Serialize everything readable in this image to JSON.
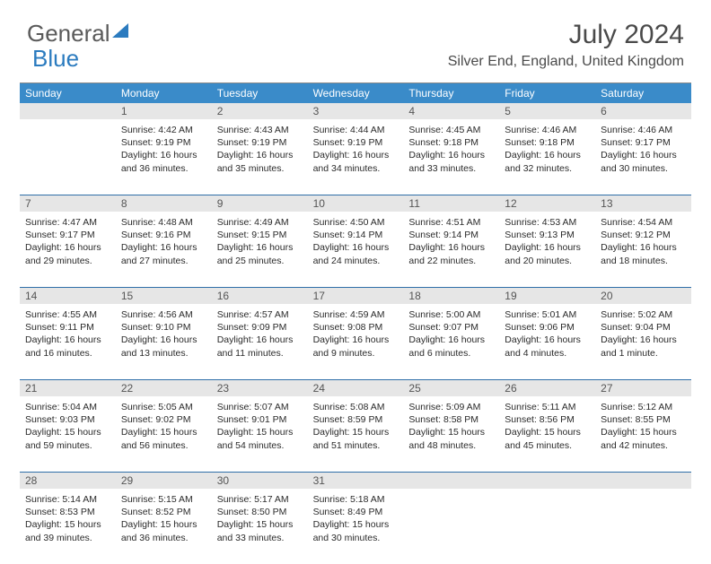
{
  "brand": {
    "part1": "General",
    "part2": "Blue"
  },
  "title": "July 2024",
  "location": "Silver End, England, United Kingdom",
  "colors": {
    "header_bg": "#3a8bc9",
    "week_border": "#2f6fa8",
    "daynum_bg": "#e6e6e6",
    "brand_gray": "#5a5a5a",
    "brand_blue": "#2b7bbf"
  },
  "day_labels": [
    "Sunday",
    "Monday",
    "Tuesday",
    "Wednesday",
    "Thursday",
    "Friday",
    "Saturday"
  ],
  "weeks": [
    {
      "nums": [
        "",
        "1",
        "2",
        "3",
        "4",
        "5",
        "6"
      ],
      "cells": [
        null,
        {
          "sunrise": "4:42 AM",
          "sunset": "9:19 PM",
          "daylight": "16 hours and 36 minutes."
        },
        {
          "sunrise": "4:43 AM",
          "sunset": "9:19 PM",
          "daylight": "16 hours and 35 minutes."
        },
        {
          "sunrise": "4:44 AM",
          "sunset": "9:19 PM",
          "daylight": "16 hours and 34 minutes."
        },
        {
          "sunrise": "4:45 AM",
          "sunset": "9:18 PM",
          "daylight": "16 hours and 33 minutes."
        },
        {
          "sunrise": "4:46 AM",
          "sunset": "9:18 PM",
          "daylight": "16 hours and 32 minutes."
        },
        {
          "sunrise": "4:46 AM",
          "sunset": "9:17 PM",
          "daylight": "16 hours and 30 minutes."
        }
      ]
    },
    {
      "nums": [
        "7",
        "8",
        "9",
        "10",
        "11",
        "12",
        "13"
      ],
      "cells": [
        {
          "sunrise": "4:47 AM",
          "sunset": "9:17 PM",
          "daylight": "16 hours and 29 minutes."
        },
        {
          "sunrise": "4:48 AM",
          "sunset": "9:16 PM",
          "daylight": "16 hours and 27 minutes."
        },
        {
          "sunrise": "4:49 AM",
          "sunset": "9:15 PM",
          "daylight": "16 hours and 25 minutes."
        },
        {
          "sunrise": "4:50 AM",
          "sunset": "9:14 PM",
          "daylight": "16 hours and 24 minutes."
        },
        {
          "sunrise": "4:51 AM",
          "sunset": "9:14 PM",
          "daylight": "16 hours and 22 minutes."
        },
        {
          "sunrise": "4:53 AM",
          "sunset": "9:13 PM",
          "daylight": "16 hours and 20 minutes."
        },
        {
          "sunrise": "4:54 AM",
          "sunset": "9:12 PM",
          "daylight": "16 hours and 18 minutes."
        }
      ]
    },
    {
      "nums": [
        "14",
        "15",
        "16",
        "17",
        "18",
        "19",
        "20"
      ],
      "cells": [
        {
          "sunrise": "4:55 AM",
          "sunset": "9:11 PM",
          "daylight": "16 hours and 16 minutes."
        },
        {
          "sunrise": "4:56 AM",
          "sunset": "9:10 PM",
          "daylight": "16 hours and 13 minutes."
        },
        {
          "sunrise": "4:57 AM",
          "sunset": "9:09 PM",
          "daylight": "16 hours and 11 minutes."
        },
        {
          "sunrise": "4:59 AM",
          "sunset": "9:08 PM",
          "daylight": "16 hours and 9 minutes."
        },
        {
          "sunrise": "5:00 AM",
          "sunset": "9:07 PM",
          "daylight": "16 hours and 6 minutes."
        },
        {
          "sunrise": "5:01 AM",
          "sunset": "9:06 PM",
          "daylight": "16 hours and 4 minutes."
        },
        {
          "sunrise": "5:02 AM",
          "sunset": "9:04 PM",
          "daylight": "16 hours and 1 minute."
        }
      ]
    },
    {
      "nums": [
        "21",
        "22",
        "23",
        "24",
        "25",
        "26",
        "27"
      ],
      "cells": [
        {
          "sunrise": "5:04 AM",
          "sunset": "9:03 PM",
          "daylight": "15 hours and 59 minutes."
        },
        {
          "sunrise": "5:05 AM",
          "sunset": "9:02 PM",
          "daylight": "15 hours and 56 minutes."
        },
        {
          "sunrise": "5:07 AM",
          "sunset": "9:01 PM",
          "daylight": "15 hours and 54 minutes."
        },
        {
          "sunrise": "5:08 AM",
          "sunset": "8:59 PM",
          "daylight": "15 hours and 51 minutes."
        },
        {
          "sunrise": "5:09 AM",
          "sunset": "8:58 PM",
          "daylight": "15 hours and 48 minutes."
        },
        {
          "sunrise": "5:11 AM",
          "sunset": "8:56 PM",
          "daylight": "15 hours and 45 minutes."
        },
        {
          "sunrise": "5:12 AM",
          "sunset": "8:55 PM",
          "daylight": "15 hours and 42 minutes."
        }
      ]
    },
    {
      "nums": [
        "28",
        "29",
        "30",
        "31",
        "",
        "",
        ""
      ],
      "cells": [
        {
          "sunrise": "5:14 AM",
          "sunset": "8:53 PM",
          "daylight": "15 hours and 39 minutes."
        },
        {
          "sunrise": "5:15 AM",
          "sunset": "8:52 PM",
          "daylight": "15 hours and 36 minutes."
        },
        {
          "sunrise": "5:17 AM",
          "sunset": "8:50 PM",
          "daylight": "15 hours and 33 minutes."
        },
        {
          "sunrise": "5:18 AM",
          "sunset": "8:49 PM",
          "daylight": "15 hours and 30 minutes."
        },
        null,
        null,
        null
      ]
    }
  ],
  "labels": {
    "sunrise": "Sunrise:",
    "sunset": "Sunset:",
    "daylight": "Daylight:"
  }
}
